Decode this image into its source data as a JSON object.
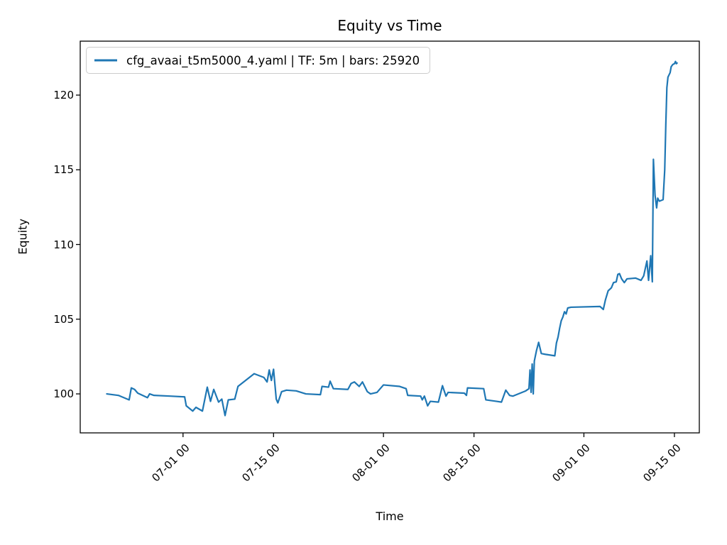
{
  "figure": {
    "background": "#ffffff"
  },
  "chart_data": {
    "type": "line",
    "title": "Equity vs Time",
    "xlabel": "Time",
    "ylabel": "Equity",
    "line_color": "#1f77b4",
    "line_width": 2.2,
    "grid": false,
    "legend_position": "upper left",
    "legend": {
      "entries": [
        {
          "label": "cfg_avaai_t5m5000_4.yaml | TF: 5m | bars: 25920",
          "color": "#1f77b4"
        }
      ]
    },
    "x_tick_labels": [
      "07-01 00",
      "07-15 00",
      "08-01 00",
      "08-15 00",
      "09-01 00",
      "09-15 00"
    ],
    "y_tick_labels": [
      "100",
      "105",
      "110",
      "115",
      "120"
    ],
    "y_ticks": [
      100,
      105,
      110,
      115,
      120
    ],
    "xlim_days_from_jun1": [
      14.1,
      109.85
    ],
    "ylim": [
      97.39,
      123.61
    ],
    "series": [
      {
        "name": "cfg_avaai_t5m5000_4.yaml | TF: 5m | bars: 25920",
        "points": [
          [
            "06-19 05",
            100.0
          ],
          [
            "06-21 00",
            99.9
          ],
          [
            "06-22 16",
            99.6
          ],
          [
            "06-23 00",
            100.4
          ],
          [
            "06-23 12",
            100.3
          ],
          [
            "06-24 00",
            100.05
          ],
          [
            "06-25 12",
            99.75
          ],
          [
            "06-25 20",
            100.0
          ],
          [
            "06-26 12",
            99.9
          ],
          [
            "06-29 00",
            99.85
          ],
          [
            "07-01 06",
            99.8
          ],
          [
            "07-01 12",
            99.2
          ],
          [
            "07-02 12",
            98.85
          ],
          [
            "07-03 00",
            99.1
          ],
          [
            "07-04 00",
            98.85
          ],
          [
            "07-04 18",
            100.45
          ],
          [
            "07-05 06",
            99.5
          ],
          [
            "07-05 18",
            100.3
          ],
          [
            "07-06 12",
            99.45
          ],
          [
            "07-07 00",
            99.65
          ],
          [
            "07-07 12",
            98.55
          ],
          [
            "07-08 00",
            99.6
          ],
          [
            "07-09 00",
            99.65
          ],
          [
            "07-09 12",
            100.5
          ],
          [
            "07-12 00",
            101.35
          ],
          [
            "07-13 12",
            101.1
          ],
          [
            "07-14 00",
            100.8
          ],
          [
            "07-14 08",
            101.6
          ],
          [
            "07-14 16",
            100.9
          ],
          [
            "07-15 00",
            101.65
          ],
          [
            "07-15 10",
            99.65
          ],
          [
            "07-15 16",
            99.4
          ],
          [
            "07-16 06",
            100.15
          ],
          [
            "07-17 00",
            100.25
          ],
          [
            "07-18 12",
            100.2
          ],
          [
            "07-20 00",
            100.0
          ],
          [
            "07-22 06",
            99.95
          ],
          [
            "07-22 12",
            100.5
          ],
          [
            "07-23 12",
            100.45
          ],
          [
            "07-23 18",
            100.85
          ],
          [
            "07-24 06",
            100.35
          ],
          [
            "07-26 12",
            100.3
          ],
          [
            "07-27 00",
            100.7
          ],
          [
            "07-27 12",
            100.8
          ],
          [
            "07-28 06",
            100.5
          ],
          [
            "07-28 18",
            100.8
          ],
          [
            "07-29 12",
            100.15
          ],
          [
            "07-30 00",
            100.0
          ],
          [
            "07-31 00",
            100.1
          ],
          [
            "08-01 00",
            100.6
          ],
          [
            "08-03 12",
            100.5
          ],
          [
            "08-04 12",
            100.35
          ],
          [
            "08-04 18",
            99.9
          ],
          [
            "08-06 18",
            99.85
          ],
          [
            "08-07 00",
            99.6
          ],
          [
            "08-07 08",
            99.85
          ],
          [
            "08-07 20",
            99.2
          ],
          [
            "08-08 06",
            99.5
          ],
          [
            "08-09 12",
            99.45
          ],
          [
            "08-10 03",
            100.55
          ],
          [
            "08-10 16",
            99.85
          ],
          [
            "08-11 00",
            100.1
          ],
          [
            "08-13 12",
            100.05
          ],
          [
            "08-13 20",
            99.9
          ],
          [
            "08-14 00",
            100.4
          ],
          [
            "08-16 12",
            100.35
          ],
          [
            "08-16 20",
            99.6
          ],
          [
            "08-18 12",
            99.5
          ],
          [
            "08-19 06",
            99.45
          ],
          [
            "08-19 22",
            100.25
          ],
          [
            "08-20 12",
            99.9
          ],
          [
            "08-21 00",
            99.85
          ],
          [
            "08-23 00",
            100.2
          ],
          [
            "08-23 12",
            100.35
          ],
          [
            "08-23 16",
            101.6
          ],
          [
            "08-23 20",
            100.1
          ],
          [
            "08-24 00",
            102.0
          ],
          [
            "08-24 04",
            100.0
          ],
          [
            "08-24 08",
            102.2
          ],
          [
            "08-24 16",
            102.9
          ],
          [
            "08-25 00",
            103.45
          ],
          [
            "08-25 10",
            102.7
          ],
          [
            "08-26 00",
            102.65
          ],
          [
            "08-27 12",
            102.55
          ],
          [
            "08-27 18",
            103.4
          ],
          [
            "08-28 00",
            103.8
          ],
          [
            "08-28 06",
            104.4
          ],
          [
            "08-28 12",
            104.9
          ],
          [
            "08-28 18",
            105.15
          ],
          [
            "08-29 00",
            105.5
          ],
          [
            "08-29 06",
            105.35
          ],
          [
            "08-29 12",
            105.75
          ],
          [
            "08-30 00",
            105.8
          ],
          [
            "09-03 12",
            105.85
          ],
          [
            "09-04 00",
            105.65
          ],
          [
            "09-04 08",
            106.3
          ],
          [
            "09-04 18",
            106.9
          ],
          [
            "09-05 06",
            107.1
          ],
          [
            "09-05 14",
            107.45
          ],
          [
            "09-06 00",
            107.5
          ],
          [
            "09-06 06",
            108.0
          ],
          [
            "09-06 12",
            108.05
          ],
          [
            "09-06 20",
            107.7
          ],
          [
            "09-07 06",
            107.45
          ],
          [
            "09-07 16",
            107.7
          ],
          [
            "09-09 00",
            107.75
          ],
          [
            "09-09 20",
            107.6
          ],
          [
            "09-10 06",
            107.9
          ],
          [
            "09-10 18",
            108.9
          ],
          [
            "09-11 00",
            107.6
          ],
          [
            "09-11 08",
            109.25
          ],
          [
            "09-11 14",
            107.5
          ],
          [
            "09-11 18",
            115.7
          ],
          [
            "09-12 00",
            113.3
          ],
          [
            "09-12 06",
            112.45
          ],
          [
            "09-12 10",
            113.1
          ],
          [
            "09-12 16",
            112.9
          ],
          [
            "09-13 06",
            113.0
          ],
          [
            "09-13 12",
            115.0
          ],
          [
            "09-13 16",
            118.0
          ],
          [
            "09-13 20",
            120.5
          ],
          [
            "09-14 00",
            121.2
          ],
          [
            "09-14 04",
            121.35
          ],
          [
            "09-14 08",
            121.5
          ],
          [
            "09-14 12",
            121.9
          ],
          [
            "09-14 18",
            122.05
          ],
          [
            "09-15 00",
            122.1
          ],
          [
            "09-15 04",
            122.25
          ],
          [
            "09-15 07",
            122.1
          ],
          [
            "09-15 10",
            122.15
          ]
        ]
      }
    ]
  }
}
